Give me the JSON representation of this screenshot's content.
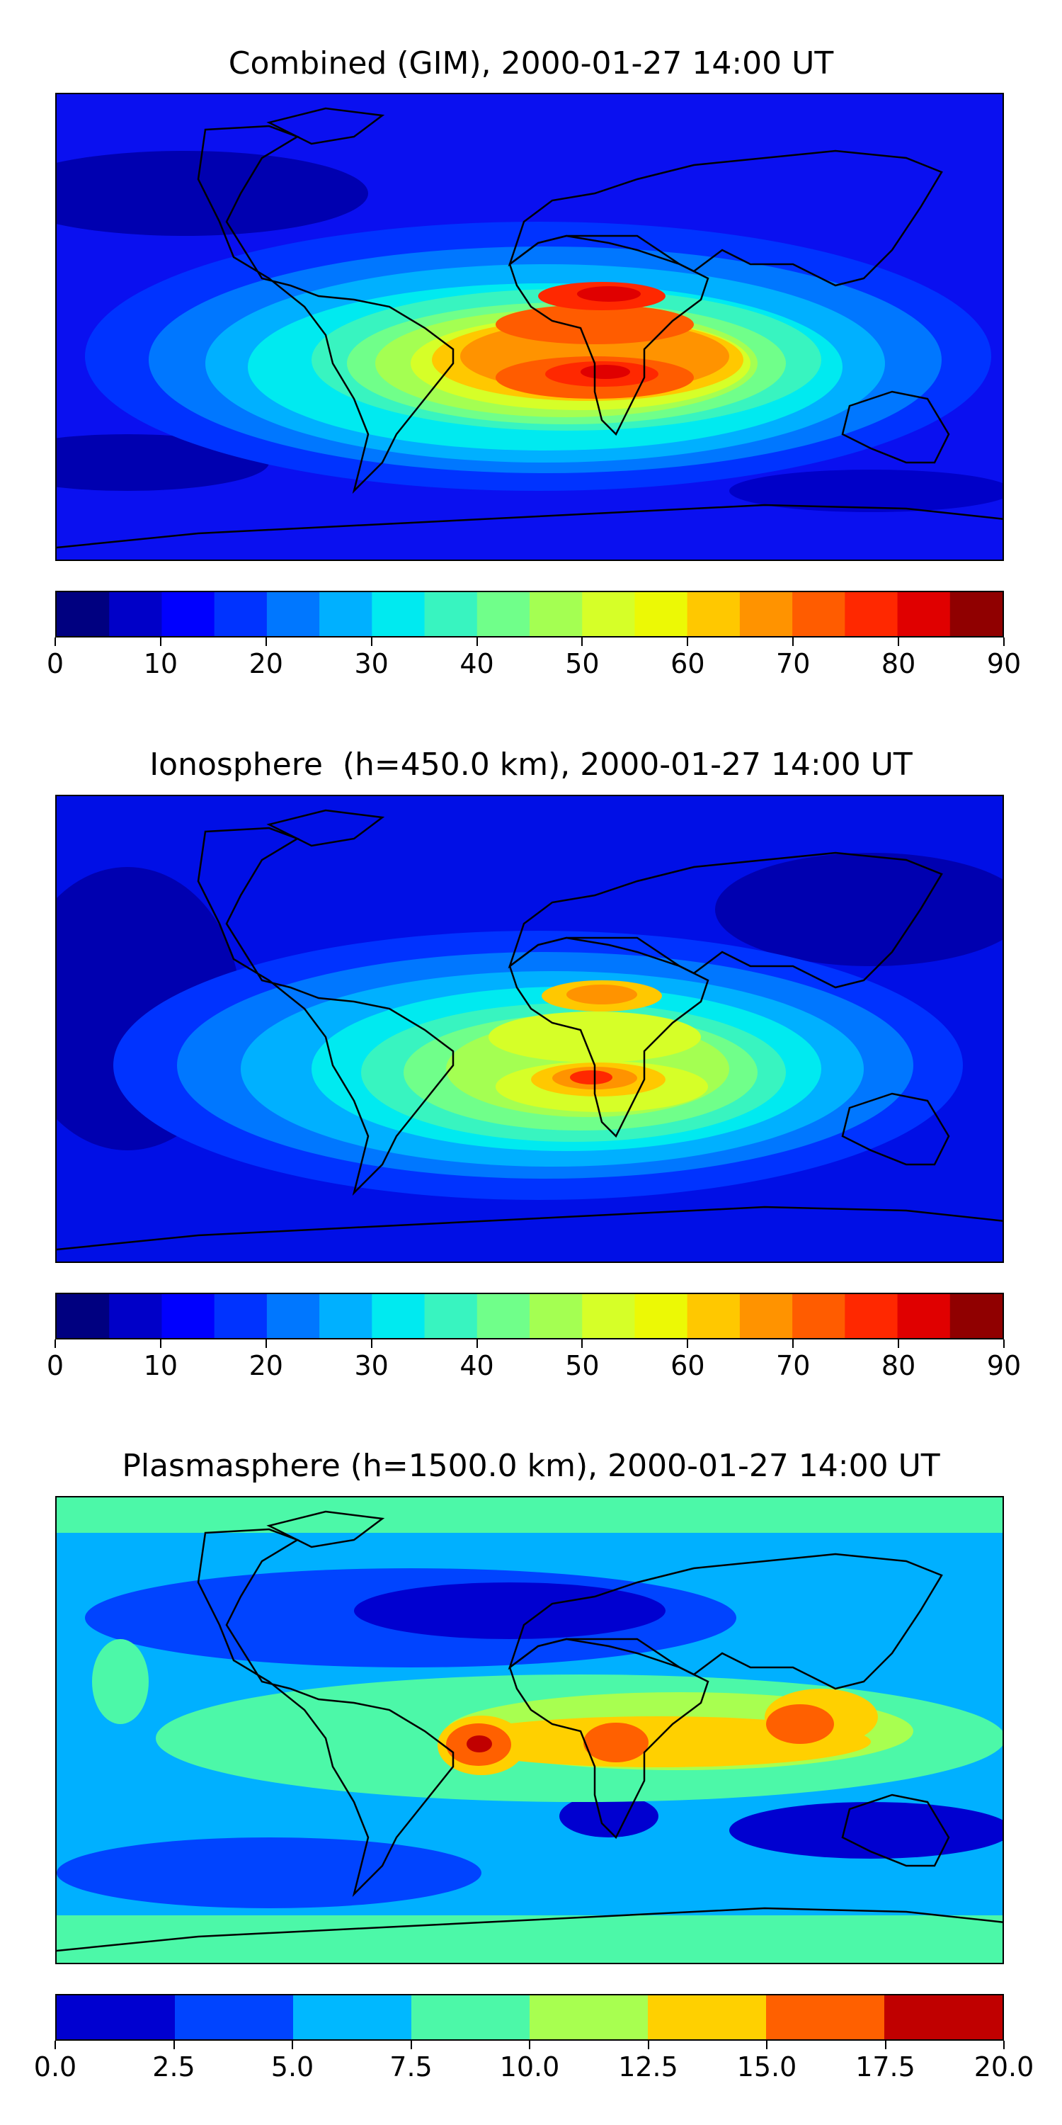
{
  "panels": [
    {
      "title": "Combined (GIM), 2000-01-27 14:00 UT",
      "background": "#0a10f0",
      "levels": [
        0,
        5,
        10,
        15,
        20,
        25,
        30,
        35,
        40,
        45,
        50,
        55,
        60,
        65,
        70,
        75,
        80,
        85,
        90
      ],
      "colors": [
        "#000080",
        "#0000c8",
        "#0000ff",
        "#0033ff",
        "#0077ff",
        "#00b0ff",
        "#00eaf0",
        "#38f4c0",
        "#70ff8a",
        "#a4ff52",
        "#d6ff28",
        "#ecf905",
        "#ffc800",
        "#ff9300",
        "#ff5c00",
        "#ff2800",
        "#e00000",
        "#900000"
      ],
      "tick_labels": [
        "0",
        "10",
        "20",
        "30",
        "40",
        "50",
        "60",
        "70",
        "80",
        "90"
      ]
    },
    {
      "title": "Ionosphere  (h=450.0 km), 2000-01-27 14:00 UT",
      "background": "#000fe6",
      "levels": [
        0,
        5,
        10,
        15,
        20,
        25,
        30,
        35,
        40,
        45,
        50,
        55,
        60,
        65,
        70,
        75,
        80,
        85,
        90
      ],
      "colors": [
        "#000080",
        "#0000c8",
        "#0000ff",
        "#0033ff",
        "#0077ff",
        "#00b0ff",
        "#00eaf0",
        "#38f4c0",
        "#70ff8a",
        "#a4ff52",
        "#d6ff28",
        "#ecf905",
        "#ffc800",
        "#ff9300",
        "#ff5c00",
        "#ff2800",
        "#e00000",
        "#900000"
      ],
      "tick_labels": [
        "0",
        "10",
        "20",
        "30",
        "40",
        "50",
        "60",
        "70",
        "80",
        "90"
      ]
    },
    {
      "title": "Plasmasphere (h=1500.0 km), 2000-01-27 14:00 UT",
      "background": "#00b0ff",
      "levels": [
        0,
        2.5,
        5,
        7.5,
        10,
        12.5,
        15,
        17.5,
        20
      ],
      "colors": [
        "#0000d0",
        "#0044ff",
        "#00b8ff",
        "#4cf8a8",
        "#a8ff50",
        "#ffd000",
        "#ff6000",
        "#c00000"
      ],
      "tick_labels": [
        "0.0",
        "2.5",
        "5.0",
        "7.5",
        "10.0",
        "12.5",
        "15.0",
        "17.5",
        "20.0"
      ]
    }
  ]
}
